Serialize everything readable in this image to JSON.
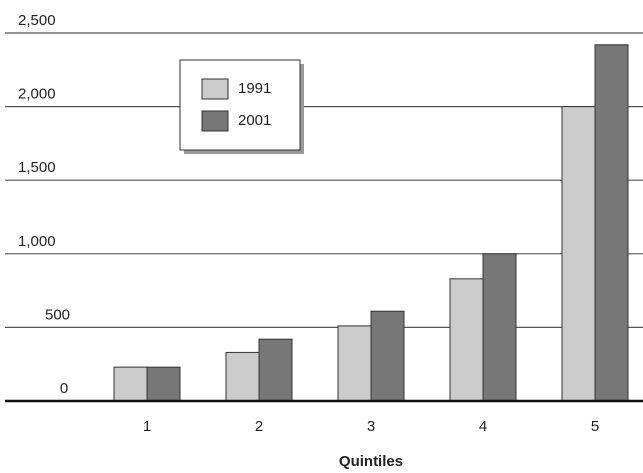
{
  "chart_data": {
    "type": "bar",
    "xlabel": "Quintiles",
    "categories": [
      "1",
      "2",
      "3",
      "4",
      "5"
    ],
    "series": [
      {
        "name": "1991",
        "color": "#cccccc",
        "values": [
          230,
          330,
          510,
          830,
          2000
        ]
      },
      {
        "name": "2001",
        "color": "#777777",
        "values": [
          230,
          420,
          610,
          1000,
          2420
        ]
      }
    ],
    "ylim": [
      0,
      2500
    ],
    "yticks": [
      0,
      500,
      {
        "value": 1000,
        "label": "1,000"
      },
      {
        "value": 1500,
        "label": "1,500"
      },
      {
        "value": 2000,
        "label": "2,000"
      },
      {
        "value": 2500,
        "label": "2,500"
      }
    ],
    "grid": true,
    "legend": "top-left"
  }
}
